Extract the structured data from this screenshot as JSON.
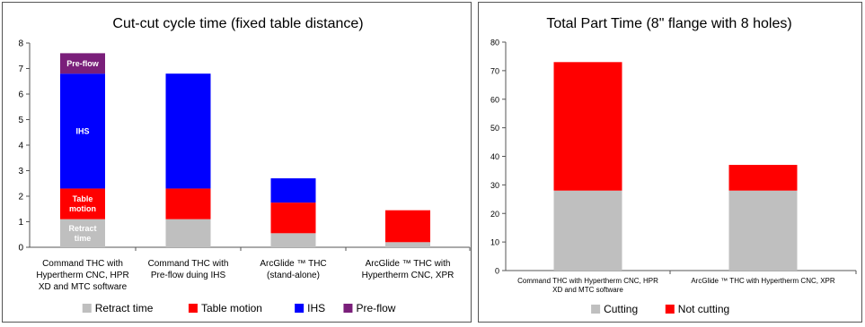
{
  "chart_data": [
    {
      "type": "bar",
      "stacked": true,
      "title": "Cut-cut cycle time (fixed table distance)",
      "ylim": [
        0,
        8
      ],
      "yticks": [
        0,
        1,
        2,
        3,
        4,
        5,
        6,
        7,
        8
      ],
      "grid": false,
      "legend_position": "bottom",
      "categories": [
        [
          "Command THC with",
          "Hypertherm CNC, HPR",
          "XD and MTC software"
        ],
        [
          "Command THC with",
          "Pre-flow duing IHS"
        ],
        [
          "ArcGlide ™ THC",
          "(stand-alone)"
        ],
        [
          "ArcGlide ™ THC with",
          "Hypertherm CNC, XPR"
        ]
      ],
      "series": [
        {
          "name": "Retract time",
          "color": "#bfbfbf",
          "values": [
            1.1,
            1.1,
            0.55,
            0.2
          ]
        },
        {
          "name": "Table motion",
          "color": "#ff0000",
          "values": [
            1.2,
            1.2,
            1.2,
            1.25
          ]
        },
        {
          "name": "IHS",
          "color": "#0000ff",
          "values": [
            4.5,
            4.5,
            0.95,
            0
          ]
        },
        {
          "name": "Pre-flow",
          "color": "#7a1f7a",
          "values": [
            0.8,
            0,
            0,
            0
          ]
        }
      ],
      "bar_labels": [
        {
          "category_index": 0,
          "series_index": 0,
          "lines": [
            "Retract",
            "time"
          ]
        },
        {
          "category_index": 0,
          "series_index": 1,
          "lines": [
            "Table",
            "motion"
          ]
        },
        {
          "category_index": 0,
          "series_index": 2,
          "lines": [
            "IHS"
          ]
        },
        {
          "category_index": 0,
          "series_index": 3,
          "lines": [
            "Pre-flow"
          ]
        }
      ]
    },
    {
      "type": "bar",
      "stacked": true,
      "title": "Total Part Time (8\" flange with 8 holes)",
      "ylim": [
        0,
        80
      ],
      "yticks": [
        0,
        10,
        20,
        30,
        40,
        50,
        60,
        70,
        80
      ],
      "grid": false,
      "legend_position": "bottom",
      "categories": [
        [
          "Command THC with Hypertherm CNC, HPR",
          "XD and MTC software"
        ],
        [
          "ArcGlide ™ THC with Hypertherm CNC, XPR"
        ]
      ],
      "series": [
        {
          "name": "Cutting",
          "color": "#bfbfbf",
          "values": [
            28,
            28
          ]
        },
        {
          "name": "Not cutting",
          "color": "#ff0000",
          "values": [
            45,
            9
          ]
        }
      ],
      "bar_labels": []
    }
  ]
}
